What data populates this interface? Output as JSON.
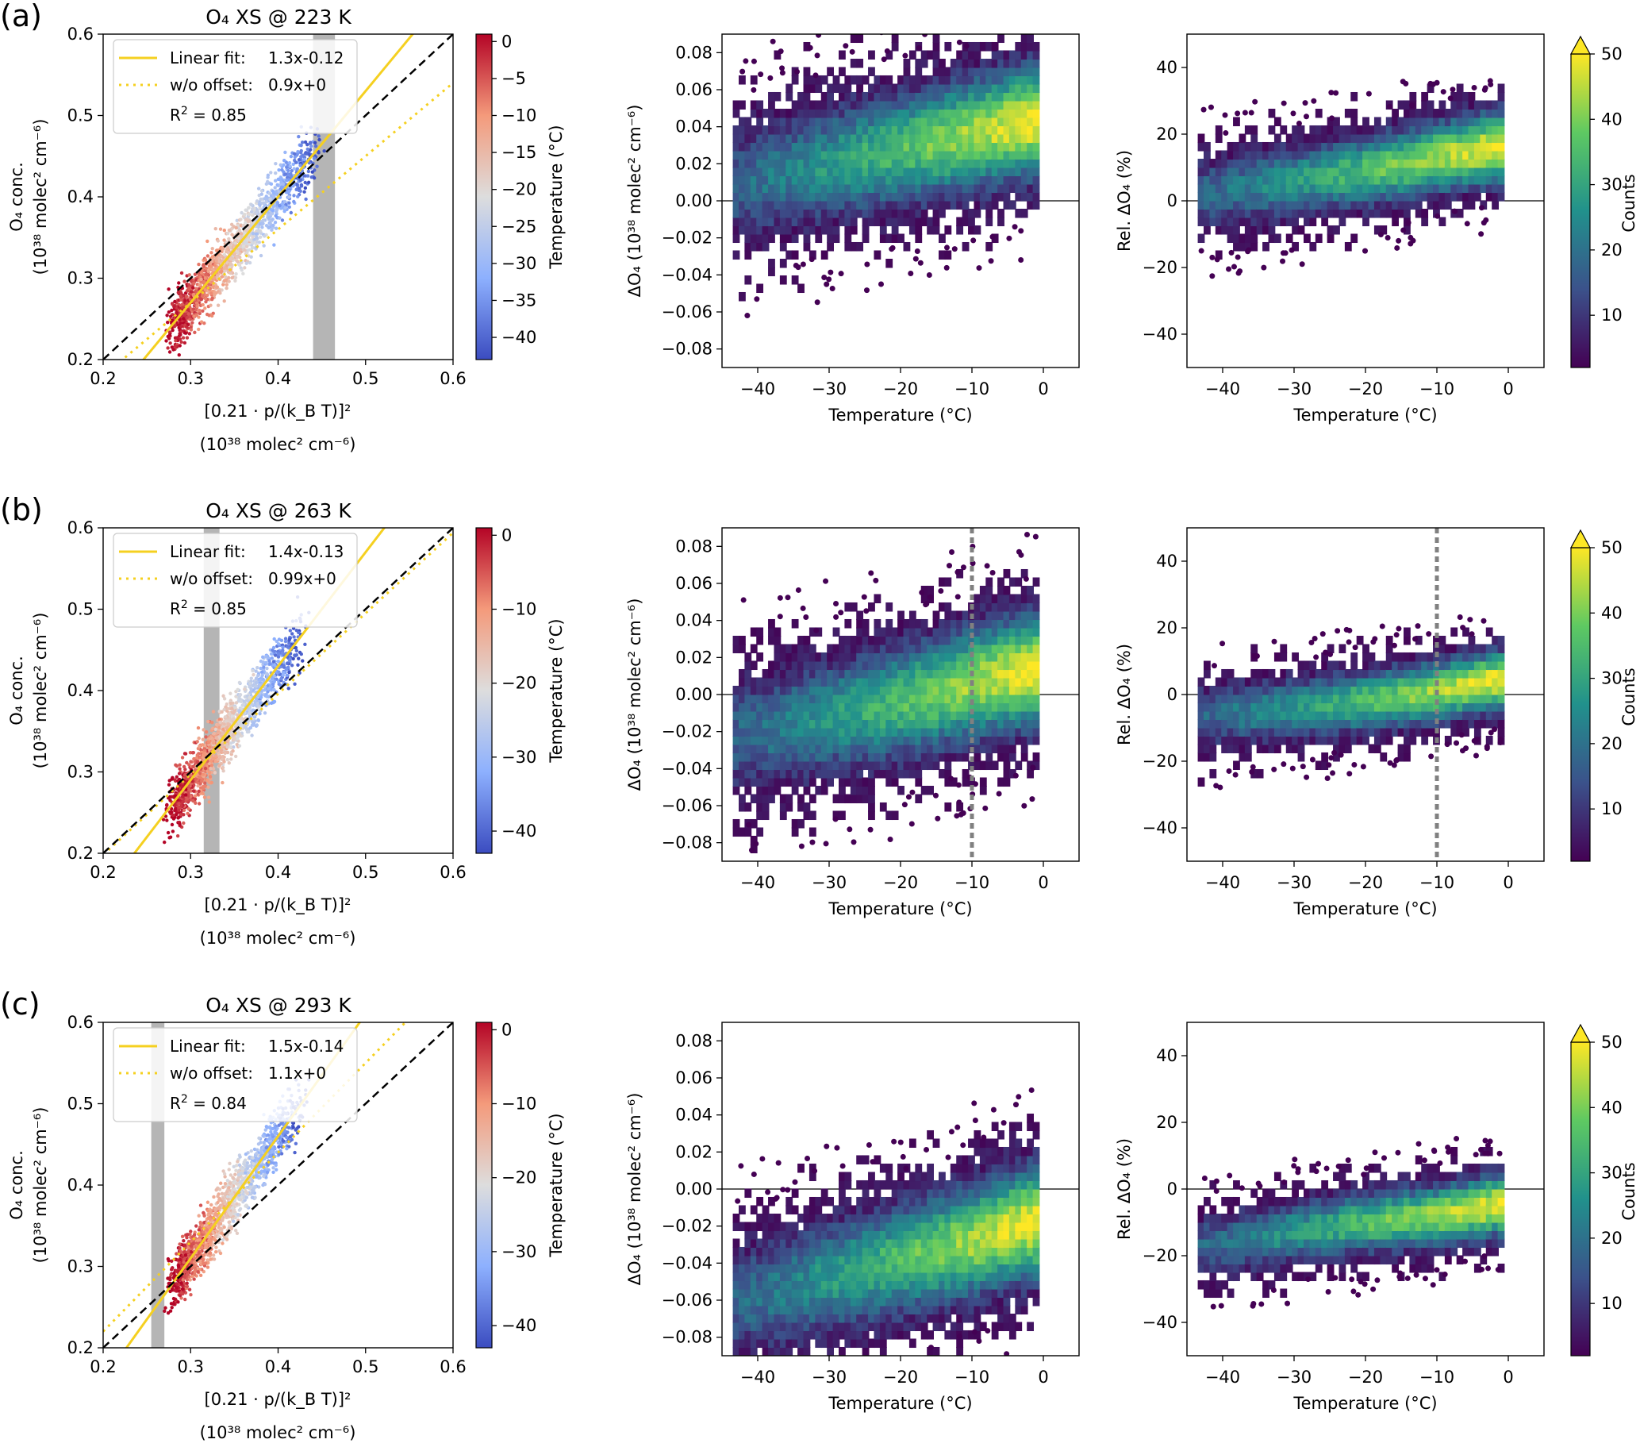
{
  "rows": [
    {
      "id": "a",
      "label": "(a)",
      "title": "O₄ XS @ 223 K",
      "scatter_x_label_formula": "[0.21 · p/(k_B T)]²",
      "fit_label": "Linear fit:",
      "fit_eq": "1.3x-0.12",
      "nooff_label": "w/o offset:",
      "nooff_eq": "0.9x+0",
      "r2_value": "0.85",
      "band": [
        0.44,
        0.465
      ],
      "vline_temp": null
    },
    {
      "id": "b",
      "label": "(b)",
      "title": "O₄ XS @ 263 K",
      "scatter_x_label_formula": "[0.21 · p/(k_B T)]²",
      "fit_label": "Linear fit:",
      "fit_eq": "1.4x-0.13",
      "nooff_label": "w/o offset:",
      "nooff_eq": "0.99x+0",
      "r2_value": "0.85",
      "band": [
        0.315,
        0.333
      ],
      "vline_temp": -10
    },
    {
      "id": "c",
      "label": "(c)",
      "title": "O₄ XS @ 293 K",
      "scatter_x_label_formula": "[0.21 · p/(k_B T)]²",
      "fit_label": "Linear fit:",
      "fit_eq": "1.5x-0.14",
      "nooff_label": "w/o offset:",
      "nooff_eq": "1.1x+0",
      "r2_value": "0.84",
      "band": [
        0.255,
        0.27
      ],
      "vline_temp": null
    }
  ],
  "labels": {
    "scatter_x_unit": "(10³⁸ molec² cm⁻⁶)",
    "scatter_y_line1": "O₄ conc.",
    "scatter_y_line2": "(10³⁸ molec² cm⁻⁶)",
    "temp_cbar_label": "Temperature (°C)",
    "delta_y_label": "ΔO₄ (10³⁸ molec² cm⁻⁶)",
    "rel_y_label": "Rel. ΔO₄ (%)",
    "x_temp_label": "Temperature (°C)",
    "counts_label": "Counts"
  },
  "ticks": {
    "scatter_x": [
      "0.2",
      "0.3",
      "0.4",
      "0.5",
      "0.6"
    ],
    "scatter_y": [
      "0.2",
      "0.3",
      "0.4",
      "0.5",
      "0.6"
    ],
    "temp_cbar_a": [
      "0",
      "−5",
      "−10",
      "−15",
      "−20",
      "−25",
      "−30",
      "−35",
      "−40"
    ],
    "temp_cbar_bc": [
      "0",
      "−10",
      "−20",
      "−30",
      "−40"
    ],
    "temp_x": [
      "−40",
      "−30",
      "−20",
      "−10",
      "0"
    ],
    "delta_y": [
      "0.08",
      "0.06",
      "0.04",
      "0.02",
      "0.00",
      "−0.02",
      "−0.04",
      "−0.06",
      "−0.08"
    ],
    "rel_y": [
      "40",
      "20",
      "0",
      "−20",
      "−40"
    ],
    "counts": [
      "50",
      "40",
      "30",
      "20",
      "10"
    ]
  },
  "colors": {
    "fit_line": "#f5d020",
    "band": "#b5b5b5",
    "one_to_one": "#000000",
    "temp_cmap": [
      "#3b4cc0",
      "#8db0fe",
      "#dddddd",
      "#f49a7b",
      "#b40426"
    ],
    "counts_cmap": [
      "#440154",
      "#3b528b",
      "#21918c",
      "#5ec962",
      "#fde725"
    ]
  },
  "chart_data": [
    {
      "type": "scatter",
      "panel": "a-left",
      "title": "O₄ XS @ 223 K",
      "xlim": [
        0.2,
        0.6
      ],
      "ylim": [
        0.2,
        0.6
      ],
      "color_by": "Temperature (°C)",
      "color_range": [
        -43,
        1
      ],
      "lines": [
        {
          "name": "Linear fit: 1.3x-0.12",
          "slope": 1.3,
          "intercept": -0.12,
          "style": "solid"
        },
        {
          "name": "w/o offset: 0.9x+0",
          "slope": 0.9,
          "intercept": 0,
          "style": "dotted"
        },
        {
          "slope": 1,
          "intercept": 0,
          "style": "dashed"
        }
      ],
      "cloud": {
        "x_range": [
          0.28,
          0.45
        ],
        "r2": 0.85
      }
    },
    {
      "type": "heatmap",
      "panel": "a-middle",
      "xlim": [
        -45,
        5
      ],
      "ylim": [
        -0.09,
        0.09
      ],
      "trend": [
        [
          -40,
          0.012
        ],
        [
          -30,
          0.02
        ],
        [
          -20,
          0.028
        ],
        [
          -10,
          0.036
        ],
        [
          -2,
          0.043
        ]
      ],
      "spread": 0.02
    },
    {
      "type": "heatmap",
      "panel": "a-right",
      "xlim": [
        -45,
        5
      ],
      "ylim": [
        -50,
        50
      ],
      "trend": [
        [
          -40,
          3
        ],
        [
          -30,
          6
        ],
        [
          -20,
          9
        ],
        [
          -10,
          13
        ],
        [
          -2,
          16
        ]
      ],
      "spread": 7
    },
    {
      "type": "scatter",
      "panel": "b-left",
      "title": "O₄ XS @ 263 K",
      "xlim": [
        0.2,
        0.6
      ],
      "ylim": [
        0.2,
        0.6
      ],
      "color_by": "Temperature (°C)",
      "color_range": [
        -43,
        1
      ],
      "lines": [
        {
          "name": "Linear fit: 1.4x-0.13",
          "slope": 1.4,
          "intercept": -0.13,
          "style": "solid"
        },
        {
          "name": "w/o offset: 0.99x+0",
          "slope": 0.99,
          "intercept": 0,
          "style": "dotted"
        },
        {
          "slope": 1,
          "intercept": 0,
          "style": "dashed"
        }
      ],
      "cloud": {
        "x_range": [
          0.28,
          0.43
        ],
        "r2": 0.85
      }
    },
    {
      "type": "heatmap",
      "panel": "b-middle",
      "xlim": [
        -45,
        5
      ],
      "ylim": [
        -0.09,
        0.09
      ],
      "trend": [
        [
          -40,
          -0.02
        ],
        [
          -30,
          -0.012
        ],
        [
          -20,
          -0.004
        ],
        [
          -10,
          0.006
        ],
        [
          -2,
          0.013
        ]
      ],
      "spread": 0.02
    },
    {
      "type": "heatmap",
      "panel": "b-right",
      "xlim": [
        -45,
        5
      ],
      "ylim": [
        -50,
        50
      ],
      "trend": [
        [
          -40,
          -6
        ],
        [
          -30,
          -4
        ],
        [
          -20,
          -2
        ],
        [
          -10,
          1
        ],
        [
          -2,
          4
        ]
      ],
      "spread": 6
    },
    {
      "type": "scatter",
      "panel": "c-left",
      "title": "O₄ XS @ 293 K",
      "xlim": [
        0.2,
        0.6
      ],
      "ylim": [
        0.2,
        0.6
      ],
      "color_by": "Temperature (°C)",
      "color_range": [
        -43,
        1
      ],
      "lines": [
        {
          "name": "Linear fit: 1.5x-0.14",
          "slope": 1.5,
          "intercept": -0.14,
          "style": "solid"
        },
        {
          "name": "w/o offset: 1.1x+0",
          "slope": 1.1,
          "intercept": 0,
          "style": "dotted"
        },
        {
          "slope": 1,
          "intercept": 0,
          "style": "dashed"
        }
      ],
      "cloud": {
        "x_range": [
          0.28,
          0.43
        ],
        "r2": 0.84
      }
    },
    {
      "type": "heatmap",
      "panel": "c-middle",
      "xlim": [
        -45,
        5
      ],
      "ylim": [
        -0.09,
        0.09
      ],
      "trend": [
        [
          -40,
          -0.058
        ],
        [
          -30,
          -0.048
        ],
        [
          -20,
          -0.038
        ],
        [
          -10,
          -0.028
        ],
        [
          -2,
          -0.018
        ]
      ],
      "spread": 0.02
    },
    {
      "type": "heatmap",
      "panel": "c-right",
      "xlim": [
        -45,
        5
      ],
      "ylim": [
        -50,
        50
      ],
      "trend": [
        [
          -40,
          -16
        ],
        [
          -30,
          -13
        ],
        [
          -20,
          -10
        ],
        [
          -10,
          -8
        ],
        [
          -2,
          -5
        ]
      ],
      "spread": 6
    }
  ]
}
